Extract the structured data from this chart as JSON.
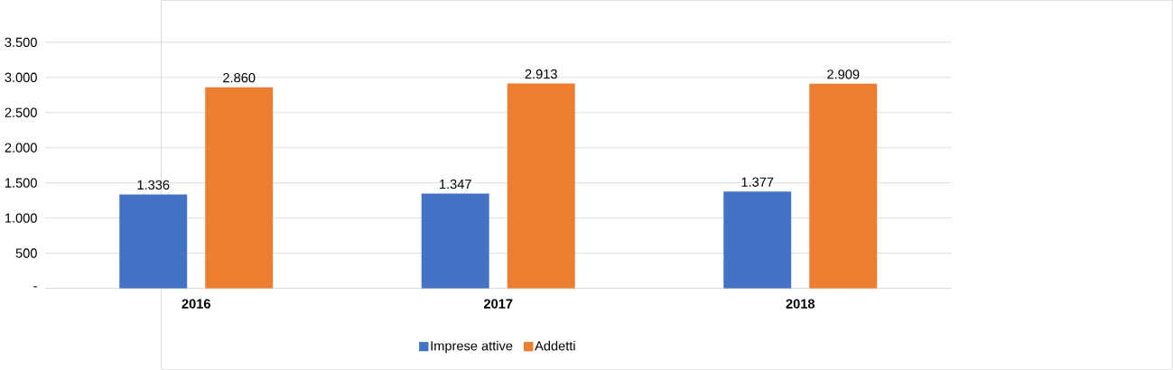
{
  "chart_data": {
    "type": "bar",
    "categories": [
      "2016",
      "2017",
      "2018"
    ],
    "series": [
      {
        "name": "Imprese attive",
        "color": "#4472c4",
        "values": [
          1336,
          1347,
          1377
        ],
        "value_labels": [
          "1.336",
          "1.347",
          "1.377"
        ]
      },
      {
        "name": "Addetti",
        "color": "#ed7d31",
        "values": [
          2860,
          2913,
          2909
        ],
        "value_labels": [
          "2.860",
          "2.913",
          "2.909"
        ]
      }
    ],
    "ylim": [
      0,
      3500
    ],
    "yticks": [
      {
        "value": 0,
        "label": "-"
      },
      {
        "value": 500,
        "label": "500"
      },
      {
        "value": 1000,
        "label": "1.000"
      },
      {
        "value": 1500,
        "label": "1.500"
      },
      {
        "value": 2000,
        "label": "2.000"
      },
      {
        "value": 2500,
        "label": "2.500"
      },
      {
        "value": 3000,
        "label": "3.000"
      },
      {
        "value": 3500,
        "label": "3.500"
      }
    ],
    "grid": "y",
    "legend": "bottom"
  }
}
